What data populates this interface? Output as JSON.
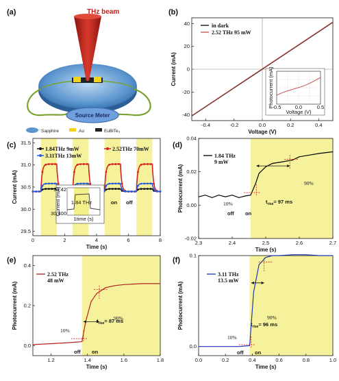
{
  "panel_a": {
    "label": "(a)",
    "beam_label": "THz beam",
    "meter_label": "Source Meter",
    "legend": [
      "Sapphire",
      "Au",
      "EuBiTe₃"
    ],
    "colors": {
      "beam": "#c8251e",
      "disc": "#4a88c8",
      "meter": "#4f86d0",
      "wire": "#7aa22c",
      "au": "#f2d41e",
      "film": "#222222"
    }
  },
  "chart_data": [
    {
      "id": "b",
      "label": "(b)",
      "type": "line",
      "xlabel": "Voltage (V)",
      "ylabel": "Current (mA)",
      "xlim": [
        -0.5,
        0.5
      ],
      "ylim": [
        -45,
        45
      ],
      "xticks": [
        -0.4,
        -0.2,
        0.0,
        0.2,
        0.4
      ],
      "yticks": [
        -40,
        -20,
        0,
        20,
        40
      ],
      "series": [
        {
          "name": "in dark",
          "color": "#000000",
          "x": [
            -0.5,
            0.5
          ],
          "y": [
            -41,
            41
          ]
        },
        {
          "name": "2.52 THz  95 mW",
          "color": "#c0504d",
          "x": [
            -0.5,
            0.5
          ],
          "y": [
            -40.6,
            41.4
          ]
        }
      ],
      "inset": {
        "xlabel": "Voltage (V)",
        "ylabel": "Photocurrent (mA)",
        "xticks": [
          -0.5,
          0.0,
          0.5
        ],
        "xlim": [
          -0.5,
          0.5
        ],
        "ylim": [
          -1,
          1
        ],
        "x": [
          -0.5,
          -0.35,
          -0.2,
          -0.05,
          0.05,
          0.2,
          0.35,
          0.5
        ],
        "y": [
          -0.45,
          -0.28,
          -0.15,
          -0.03,
          0.05,
          0.2,
          0.4,
          0.62
        ]
      }
    },
    {
      "id": "c",
      "label": "(c)",
      "type": "line",
      "xlabel": "Time (s)",
      "ylabel": "Current (mA)",
      "xlim": [
        0,
        8
      ],
      "ylim": [
        29.4,
        31.6
      ],
      "xticks": [
        0,
        2,
        4,
        6,
        8
      ],
      "yticks": [
        29.5,
        30.0,
        30.5,
        31.0,
        31.5
      ],
      "on_windows": [
        [
          0.5,
          1.5
        ],
        [
          2.5,
          3.5
        ],
        [
          4.5,
          5.5
        ],
        [
          6.5,
          7.5
        ]
      ],
      "series": [
        {
          "name": "1.84THz 9mW",
          "color": "#111111",
          "base": 30.4,
          "on": 30.46
        },
        {
          "name": "2.52THz 70mW",
          "color": "#d42020",
          "base": 30.4,
          "on": 31.02
        },
        {
          "name": "3.11THz 13mW",
          "color": "#2a5bd7",
          "base": 30.4,
          "on": 30.58
        }
      ],
      "annotations": [
        "on",
        "off"
      ],
      "inset": {
        "text": "1.84 THz",
        "xlabel": "1time (s)",
        "ylabel": "Current (mA)",
        "ytick_top": "30.42",
        "ytick_bottom": "30.400"
      }
    },
    {
      "id": "d",
      "label": "(d)",
      "type": "line",
      "xlabel": "Time (s)",
      "ylabel": "Photocurrent (mA)",
      "xlim": [
        2.3,
        2.7
      ],
      "ylim": [
        -0.02,
        0.04
      ],
      "xticks": [
        2.3,
        2.4,
        2.5,
        2.6,
        2.7
      ],
      "yticks": [
        -0.02,
        0.0,
        0.02,
        0.04
      ],
      "on_start": 2.455,
      "series": [
        {
          "name": "1.84 THz\n9 mW",
          "color": "#000000",
          "x": [
            2.3,
            2.32,
            2.34,
            2.36,
            2.38,
            2.4,
            2.42,
            2.44,
            2.455,
            2.47,
            2.48,
            2.5,
            2.52,
            2.55,
            2.58,
            2.6,
            2.63,
            2.66,
            2.7
          ],
          "y": [
            0.005,
            0.006,
            0.0045,
            0.006,
            0.005,
            0.006,
            0.0045,
            0.0055,
            0.006,
            0.013,
            0.019,
            0.023,
            0.025,
            0.026,
            0.027,
            0.029,
            0.03,
            0.031,
            0.032
          ]
        }
      ],
      "annotations": {
        "ten": "10%",
        "ninety": "90%",
        "trise": "t",
        "trise_sub": "rise",
        "trise_val": "= 97 ms",
        "off": "off",
        "on": "on"
      }
    },
    {
      "id": "e",
      "label": "(e)",
      "type": "line",
      "xlabel": "Time (s)",
      "ylabel": "Photocurrent (mA)",
      "xlim": [
        1.1,
        1.8
      ],
      "ylim": [
        -0.05,
        0.45
      ],
      "xticks": [
        1.2,
        1.4,
        1.6,
        1.8
      ],
      "yticks": [
        0.0,
        0.2,
        0.4
      ],
      "on_start": 1.37,
      "series": [
        {
          "name": "2.52 THz\n48 mW",
          "color": "#b02020",
          "x": [
            1.1,
            1.2,
            1.3,
            1.37,
            1.39,
            1.42,
            1.45,
            1.5,
            1.55,
            1.6,
            1.7,
            1.8
          ],
          "y": [
            0.005,
            0.01,
            0.015,
            0.02,
            0.12,
            0.22,
            0.26,
            0.29,
            0.3,
            0.305,
            0.31,
            0.31
          ]
        }
      ],
      "annotations": {
        "ten": "10%",
        "ninety": "90%",
        "trise": "t",
        "trise_sub": "rise",
        "trise_val": "= 87 ms",
        "off": "off",
        "on": "on"
      }
    },
    {
      "id": "f",
      "label": "(f)",
      "type": "line",
      "xlabel": "Time (s)",
      "ylabel": "Photocurrent (mA)",
      "xlim": [
        0.0,
        1.0
      ],
      "ylim": [
        -0.01,
        0.1
      ],
      "xticks": [
        0.0,
        0.2,
        0.4,
        0.6,
        0.8,
        1.0
      ],
      "yticks": [
        0.0,
        0.1
      ],
      "on_start": 0.38,
      "series": [
        {
          "name": "3.11 THz\n13.5 mW",
          "color": "#1a35b5",
          "x": [
            0.0,
            0.1,
            0.2,
            0.3,
            0.38,
            0.41,
            0.45,
            0.5,
            0.55,
            0.6,
            0.7,
            0.8,
            0.9,
            1.0
          ],
          "y": [
            0.0,
            0.0,
            0.0,
            0.0,
            0.001,
            0.06,
            0.09,
            0.098,
            0.1,
            0.1,
            0.101,
            0.101,
            0.1,
            0.1
          ]
        }
      ],
      "annotations": {
        "ten": "10%",
        "ninety": "90%",
        "trise": "t",
        "trise_sub": "rise",
        "trise_val": "= 96 ms",
        "off": "off",
        "on": "on"
      }
    }
  ]
}
